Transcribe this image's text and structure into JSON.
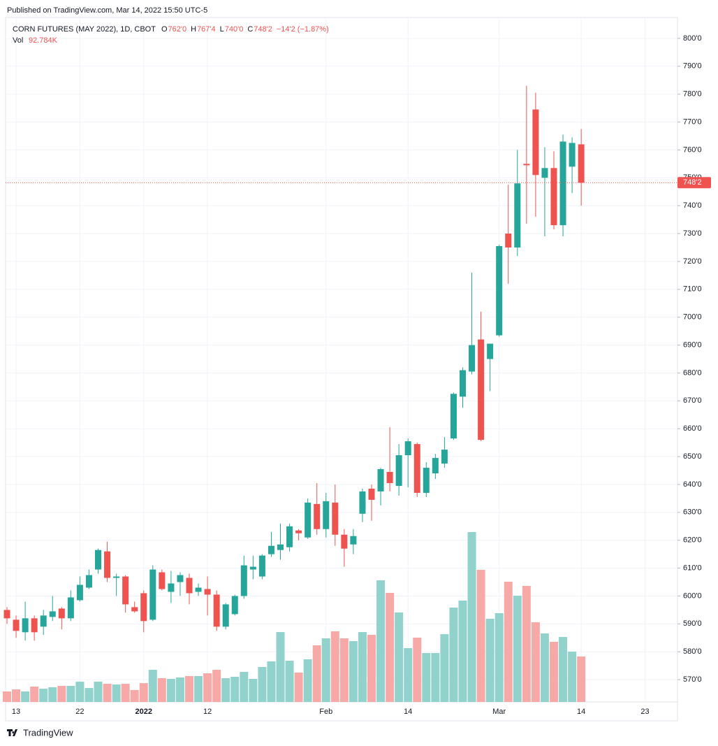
{
  "published": "Published on TradingView.com, Mar 14, 2022 15:50 UTC-5",
  "footer": "TradingView",
  "chart_data": {
    "type": "candlestick",
    "title": "CORN FUTURES (MAY 2022), 1D, CBOT",
    "legend_ohlc": [
      {
        "key": "O",
        "value": 762,
        "label": "762'0"
      },
      {
        "key": "H",
        "value": 767.5,
        "label": "767'4"
      },
      {
        "key": "L",
        "value": 740,
        "label": "740'0"
      },
      {
        "key": "C",
        "value": 748.25,
        "label": "748'2"
      }
    ],
    "change": "−14'2 (−1.87%)",
    "volume_name": "Vol",
    "volume_legend": "92.784K",
    "up_color": "#26a69a",
    "down_color": "#ef5350",
    "volume_up_color": "#92d2cc",
    "volume_down_color": "#f7a9a7",
    "grid": true,
    "categories": [
      null,
      "13",
      null,
      null,
      null,
      null,
      null,
      null,
      "22",
      null,
      null,
      null,
      null,
      null,
      null,
      "2022",
      null,
      null,
      null,
      null,
      null,
      null,
      "12",
      null,
      null,
      null,
      null,
      null,
      null,
      null,
      null,
      null,
      null,
      null,
      null,
      "Feb",
      null,
      null,
      null,
      null,
      null,
      null,
      null,
      null,
      "14",
      null,
      null,
      null,
      null,
      null,
      null,
      null,
      null,
      null,
      "Mar",
      null,
      null,
      null,
      null,
      null,
      null,
      null,
      null,
      "14",
      null,
      null,
      null,
      null,
      null,
      null,
      "23"
    ],
    "open": [
      595,
      591.5,
      587,
      592,
      589,
      592.5,
      595.5,
      592,
      598.5,
      603,
      609.5,
      616,
      606.5,
      607,
      596,
      601,
      591.5,
      608.5,
      601.5,
      605,
      606.5,
      601.5,
      602.5,
      600.5,
      589,
      593.5,
      600,
      609.5,
      607,
      615,
      616.5,
      617.5,
      623.5,
      621,
      633,
      624,
      633.5,
      622,
      618.5,
      629.5,
      638.5,
      637.5,
      644.5,
      639.5,
      650.5,
      654.5,
      637,
      644,
      647.5,
      656.5,
      671.5,
      680.5,
      692,
      685,
      693.5,
      730,
      725,
      755,
      774.5,
      750,
      753.5,
      733,
      754,
      762,
      null,
      null,
      null,
      null,
      null,
      null,
      null
    ],
    "high": [
      596,
      593,
      598,
      593,
      595,
      600,
      596,
      602,
      607,
      609.5,
      617,
      619.5,
      608,
      607.5,
      598,
      602,
      611,
      609.5,
      609,
      608.5,
      608,
      604.5,
      607,
      602,
      597.5,
      600.5,
      614.5,
      614.5,
      615,
      623,
      626,
      626,
      624,
      635,
      640.5,
      637,
      640,
      624,
      624,
      638.5,
      640,
      646,
      660.5,
      654.5,
      656.5,
      655,
      648,
      651,
      657,
      673,
      682,
      716,
      702,
      690.5,
      726,
      747.5,
      760,
      783,
      780.5,
      761,
      759.5,
      765.5,
      764.5,
      767.5,
      null,
      null,
      null,
      null,
      null,
      null,
      null
    ],
    "low": [
      590,
      585,
      584,
      584,
      586,
      591,
      588,
      591,
      598,
      602.5,
      608,
      605,
      600,
      594,
      594,
      587,
      591,
      602,
      597.5,
      600,
      597,
      600,
      593,
      587.5,
      588,
      593,
      599,
      606,
      606,
      614,
      613,
      616,
      620,
      620.5,
      622,
      621,
      618,
      610.5,
      615,
      626.5,
      627,
      632.5,
      637.5,
      636,
      639,
      635.5,
      635.5,
      642,
      646,
      656,
      667.5,
      679.5,
      655.5,
      673.5,
      693,
      712,
      722,
      733.5,
      736,
      729,
      731.5,
      729,
      744.5,
      740,
      null,
      null,
      null,
      null,
      null,
      null,
      null
    ],
    "close": [
      592,
      587.5,
      592,
      587,
      593,
      594.5,
      592,
      599.5,
      604,
      607.5,
      616.5,
      606.5,
      607,
      597,
      594.5,
      591,
      609.5,
      602.5,
      604.5,
      607.5,
      601,
      603,
      600.5,
      589,
      597,
      600,
      611,
      610.5,
      614.5,
      618,
      618.5,
      625,
      622.5,
      633.5,
      624,
      634,
      622,
      617,
      621.5,
      637.5,
      634.5,
      645.5,
      640.5,
      650.5,
      655.5,
      637,
      646,
      649.5,
      652.5,
      672.5,
      681,
      690,
      656,
      690.5,
      725.5,
      725,
      748,
      754.5,
      751,
      753.5,
      733,
      763,
      762.5,
      748.25,
      null,
      null,
      null,
      null,
      null,
      null,
      null
    ],
    "volume": [
      21400,
      25700,
      21400,
      31400,
      27100,
      30000,
      32800,
      32800,
      41400,
      28500,
      41400,
      37100,
      35700,
      37100,
      24300,
      38500,
      65700,
      48500,
      47100,
      50000,
      52800,
      52800,
      58500,
      65700,
      48500,
      51400,
      61400,
      47100,
      71400,
      82800,
      142700,
      84200,
      60000,
      87100,
      115600,
      129900,
      144200,
      129900,
      124200,
      142700,
      137000,
      248400,
      222700,
      182700,
      109900,
      131300,
      99900,
      99900,
      138500,
      192700,
      207000,
      346900,
      269800,
      169900,
      181300,
      245500,
      217000,
      236900,
      162700,
      139900,
      122800,
      132700,
      102800,
      92784,
      null,
      null,
      null,
      null,
      null,
      null,
      null
    ],
    "last_price": {
      "value": 748.25,
      "label": "748'2"
    },
    "ylim": [
      562,
      807.5
    ],
    "yticks": [
      {
        "value": 570,
        "label": "570'0"
      },
      {
        "value": 580,
        "label": "580'0"
      },
      {
        "value": 590,
        "label": "590'0"
      },
      {
        "value": 600,
        "label": "600'0"
      },
      {
        "value": 610,
        "label": "610'0"
      },
      {
        "value": 620,
        "label": "620'0"
      },
      {
        "value": 630,
        "label": "630'0"
      },
      {
        "value": 640,
        "label": "640'0"
      },
      {
        "value": 650,
        "label": "650'0"
      },
      {
        "value": 660,
        "label": "660'0"
      },
      {
        "value": 670,
        "label": "670'0"
      },
      {
        "value": 680,
        "label": "680'0"
      },
      {
        "value": 690,
        "label": "690'0"
      },
      {
        "value": 700,
        "label": "700'0"
      },
      {
        "value": 710,
        "label": "710'0"
      },
      {
        "value": 720,
        "label": "720'0"
      },
      {
        "value": 730,
        "label": "730'0"
      },
      {
        "value": 740,
        "label": "740'0"
      },
      {
        "value": 750,
        "label": "750'0"
      },
      {
        "value": 760,
        "label": "760'0"
      },
      {
        "value": 770,
        "label": "770'0"
      },
      {
        "value": 780,
        "label": "780'0"
      },
      {
        "value": 790,
        "label": "790'0"
      },
      {
        "value": 800,
        "label": "800'0"
      }
    ]
  }
}
